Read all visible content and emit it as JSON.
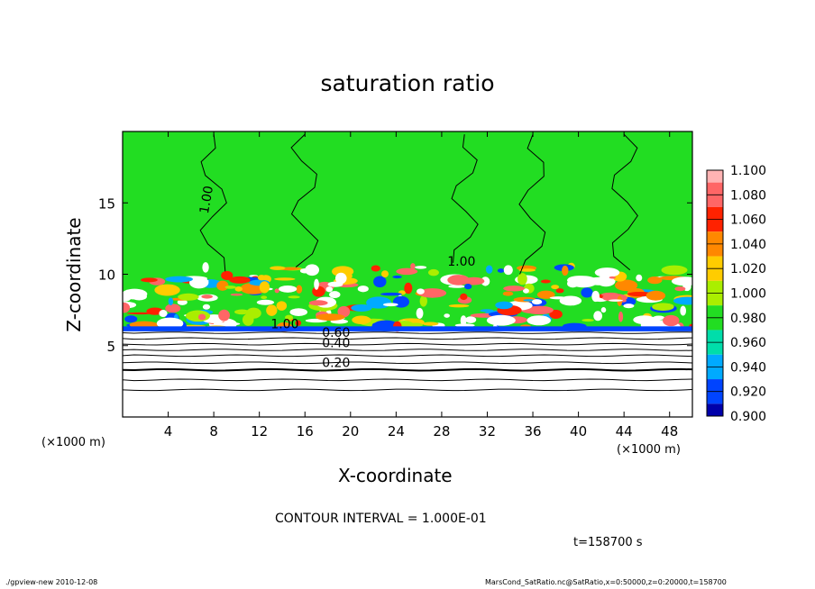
{
  "chart_data": {
    "type": "heatmap",
    "title": "saturation ratio",
    "xlabel": "X-coordinate",
    "ylabel": "Z-coordinate",
    "x_unit": "(×1000 m)",
    "z_unit": "(×1000 m)",
    "xlim": [
      0,
      50
    ],
    "ylim": [
      0,
      20
    ],
    "x_ticks": [
      4,
      8,
      12,
      16,
      20,
      24,
      28,
      32,
      36,
      40,
      44,
      48
    ],
    "y_ticks": [
      5,
      10,
      15
    ],
    "colorbar": {
      "levels": [
        "1.100",
        "1.080",
        "1.060",
        "1.040",
        "1.020",
        "1.000",
        "0.980",
        "0.960",
        "0.940",
        "0.920",
        "0.900"
      ],
      "colors": [
        "#ffb3b3",
        "#ff6666",
        "#ff2200",
        "#ff8800",
        "#ffcc00",
        "#aaee00",
        "#22dd22",
        "#00ddaa",
        "#00aaff",
        "#0044ff",
        "#0000aa",
        "#6a00c0"
      ]
    },
    "contour_labels": [
      "1.00",
      "1.00",
      "1.00",
      "0.60",
      "0.40",
      "0.20"
    ],
    "contour_interval": "CONTOUR INTERVAL = 1.000E-01",
    "time": "t=158700 s"
  },
  "footer": {
    "left": "./gpview-new   2010-12-08",
    "right": "MarsCond_SatRatio.nc@SatRatio,x=0:50000,z=0:20000,t=158700"
  },
  "colors": {
    "background": "#22dd22"
  }
}
